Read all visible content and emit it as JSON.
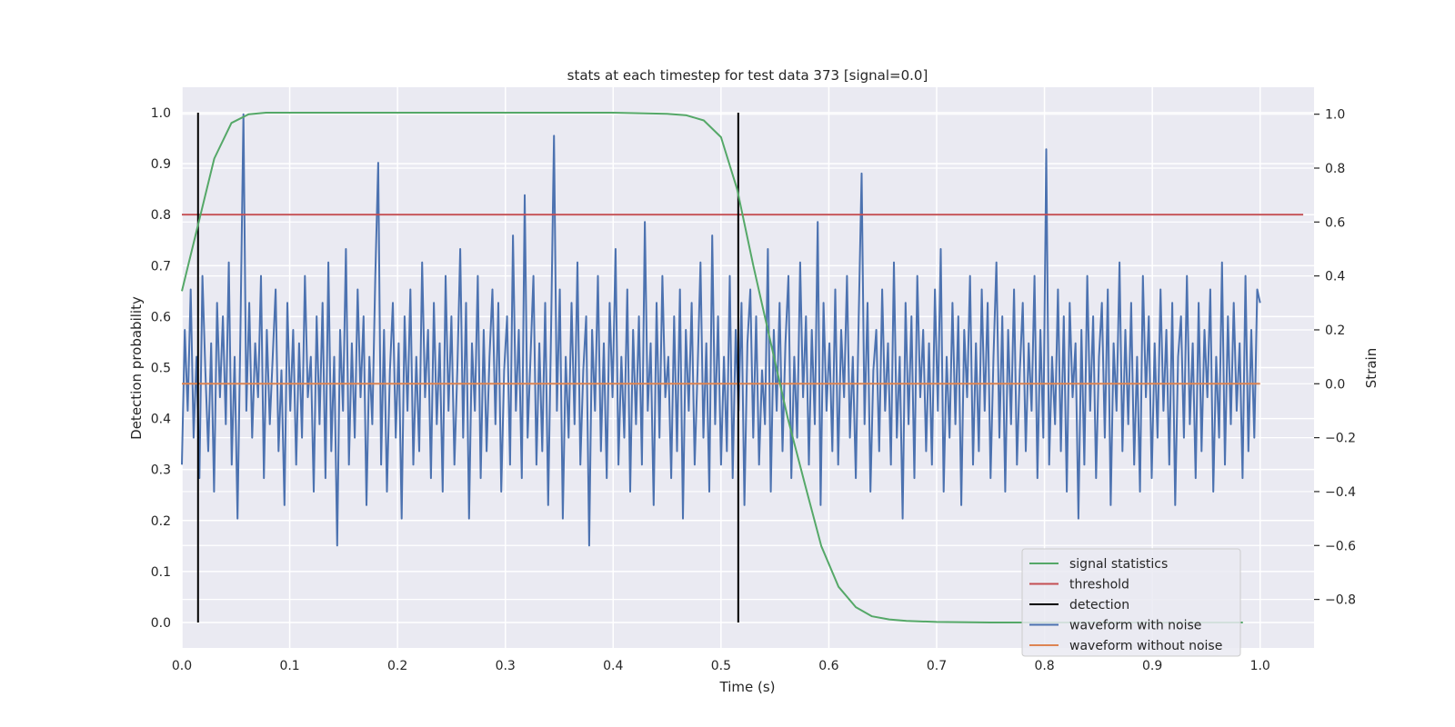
{
  "chart_data": {
    "type": "line",
    "title": "stats at each timestep for test data 373 [signal=0.0]",
    "xlabel": "Time (s)",
    "ylabel_left": "Detection probability",
    "ylabel_right": "Strain",
    "xlim": [
      0.0,
      1.05
    ],
    "ylim_left": [
      -0.05,
      1.05
    ],
    "ylim_right": [
      -0.98,
      1.1
    ],
    "x_ticks": [
      "0.0",
      "0.1",
      "0.2",
      "0.3",
      "0.4",
      "0.5",
      "0.6",
      "0.7",
      "0.8",
      "0.9",
      "1.0"
    ],
    "x_tick_values": [
      0.0,
      0.1,
      0.2,
      0.3,
      0.4,
      0.5,
      0.6,
      0.7,
      0.8,
      0.9,
      1.0
    ],
    "y_left_ticks": [
      "0.0",
      "0.1",
      "0.2",
      "0.3",
      "0.4",
      "0.5",
      "0.6",
      "0.7",
      "0.8",
      "0.9",
      "1.0"
    ],
    "y_left_tick_values": [
      0.0,
      0.1,
      0.2,
      0.3,
      0.4,
      0.5,
      0.6,
      0.7,
      0.8,
      0.9,
      1.0
    ],
    "y_right_ticks": [
      "−0.8",
      "−0.6",
      "−0.4",
      "−0.2",
      "0.0",
      "0.2",
      "0.4",
      "0.6",
      "0.8",
      "1.0"
    ],
    "y_right_tick_values": [
      -0.8,
      -0.6,
      -0.4,
      -0.2,
      0.0,
      0.2,
      0.4,
      0.6,
      0.8,
      1.0
    ],
    "grid": true,
    "legend_position": "lower-right",
    "series": [
      {
        "name": "signal statistics",
        "axis": "left",
        "color": "#55a868",
        "x": [
          0.0,
          0.015,
          0.03,
          0.046,
          0.062,
          0.078,
          0.1,
          0.2,
          0.3,
          0.4,
          0.45,
          0.468,
          0.484,
          0.5,
          0.515,
          0.53,
          0.546,
          0.562,
          0.578,
          0.593,
          0.609,
          0.625,
          0.64,
          0.656,
          0.672,
          0.7,
          0.75,
          0.8,
          0.85,
          0.9,
          0.95,
          0.984
        ],
        "y": [
          0.65,
          0.78,
          0.91,
          0.98,
          0.997,
          1.0,
          1.0,
          1.0,
          1.0,
          1.0,
          0.998,
          0.995,
          0.985,
          0.952,
          0.85,
          0.7,
          0.55,
          0.4,
          0.27,
          0.15,
          0.07,
          0.03,
          0.012,
          0.006,
          0.003,
          0.001,
          0.0,
          0.0,
          0.0,
          0.0,
          0.0,
          0.0
        ]
      },
      {
        "name": "threshold",
        "axis": "left",
        "color": "#c44e52",
        "x": [
          0.0,
          1.04
        ],
        "y": [
          0.8,
          0.8
        ]
      },
      {
        "name": "detection",
        "axis": "left",
        "color": "#000000",
        "segments": [
          {
            "x": 0.015,
            "y0": 0.0,
            "y1": 1.0
          },
          {
            "x": 0.516,
            "y0": 0.0,
            "y1": 1.0
          }
        ]
      },
      {
        "name": "waveform with noise",
        "axis": "right",
        "color": "#4c72b0",
        "x_range": [
          0.0,
          1.0
        ],
        "y": [
          -0.3,
          0.2,
          -0.1,
          0.35,
          -0.2,
          0.1,
          -0.35,
          0.4,
          0.05,
          -0.25,
          0.15,
          -0.4,
          0.3,
          -0.05,
          0.25,
          -0.15,
          0.45,
          -0.3,
          0.1,
          -0.5,
          0.2,
          1.0,
          -0.1,
          0.3,
          -0.2,
          0.15,
          -0.05,
          0.4,
          -0.35,
          0.2,
          -0.15,
          0.1,
          0.35,
          -0.25,
          0.05,
          -0.45,
          0.3,
          -0.1,
          0.2,
          -0.3,
          0.15,
          -0.2,
          0.4,
          -0.05,
          0.1,
          -0.4,
          0.25,
          -0.15,
          0.3,
          -0.35,
          0.45,
          -0.25,
          0.1,
          -0.6,
          0.2,
          -0.1,
          0.5,
          -0.3,
          0.15,
          -0.2,
          0.35,
          -0.05,
          0.25,
          -0.45,
          0.1,
          -0.15,
          0.4,
          0.82,
          -0.3,
          0.2,
          -0.4,
          0.05,
          0.3,
          -0.2,
          0.15,
          -0.5,
          0.25,
          -0.1,
          0.35,
          -0.3,
          0.1,
          -0.25,
          0.45,
          -0.05,
          0.2,
          -0.35,
          0.3,
          -0.15,
          0.15,
          -0.4,
          0.4,
          -0.1,
          0.25,
          -0.3,
          0.05,
          0.5,
          -0.2,
          0.3,
          -0.5,
          0.15,
          -0.1,
          0.4,
          -0.35,
          0.2,
          -0.25,
          0.1,
          0.35,
          -0.15,
          0.3,
          -0.4,
          0.05,
          0.25,
          -0.3,
          0.55,
          -0.1,
          0.2,
          -0.35,
          0.7,
          -0.2,
          0.1,
          0.4,
          -0.3,
          0.15,
          -0.25,
          0.3,
          -0.45,
          0.2,
          0.92,
          -0.1,
          0.35,
          -0.5,
          0.1,
          -0.2,
          0.3,
          -0.15,
          0.45,
          -0.3,
          0.05,
          0.25,
          -0.6,
          0.2,
          -0.1,
          0.4,
          -0.25,
          0.15,
          -0.35,
          0.3,
          -0.05,
          0.5,
          -0.3,
          0.1,
          -0.2,
          0.35,
          -0.4,
          0.2,
          -0.15,
          0.25,
          -0.3,
          0.6,
          -0.1,
          0.15,
          -0.45,
          0.3,
          -0.2,
          0.4,
          -0.05,
          0.1,
          -0.35,
          0.25,
          -0.25,
          0.35,
          -0.5,
          0.2,
          -0.1,
          0.3,
          -0.3,
          0.05,
          0.45,
          -0.2,
          0.15,
          -0.4,
          0.55,
          -0.15,
          0.25,
          -0.3,
          0.1,
          -0.25,
          0.4,
          -0.35,
          0.2,
          -0.1,
          0.3,
          -0.45,
          0.15,
          0.35,
          -0.2,
          0.25,
          -0.3,
          0.05,
          -0.15,
          0.5,
          -0.4,
          0.2,
          -0.1,
          0.3,
          -0.25,
          0.15,
          0.4,
          -0.35,
          0.1,
          -0.2,
          0.45,
          -0.05,
          0.25,
          -0.3,
          0.2,
          -0.15,
          0.6,
          -0.45,
          0.3,
          -0.1,
          0.15,
          -0.25,
          0.35,
          -0.3,
          0.2,
          -0.05,
          0.4,
          -0.2,
          0.1,
          -0.35,
          0.25,
          0.78,
          -0.15,
          0.3,
          -0.4,
          0.05,
          0.2,
          -0.25,
          0.35,
          -0.1,
          0.15,
          -0.3,
          0.45,
          -0.2,
          0.1,
          -0.5,
          0.3,
          -0.15,
          0.25,
          -0.35,
          0.4,
          -0.05,
          0.2,
          -0.25,
          0.15,
          -0.3,
          0.35,
          -0.1,
          0.5,
          -0.4,
          0.1,
          -0.2,
          0.3,
          -0.15,
          0.25,
          -0.45,
          0.2,
          -0.05,
          0.4,
          -0.3,
          0.15,
          -0.25,
          0.35,
          -0.1,
          0.3,
          -0.35,
          0.1,
          0.45,
          -0.2,
          0.25,
          -0.4,
          0.2,
          -0.15,
          0.35,
          -0.3,
          0.05,
          0.3,
          -0.25,
          0.15,
          -0.1,
          0.4,
          -0.35,
          0.2,
          -0.2,
          0.87,
          -0.3,
          0.1,
          -0.15,
          0.35,
          -0.25,
          0.25,
          -0.4,
          0.3,
          -0.05,
          0.15,
          -0.5,
          0.2,
          -0.3,
          0.4,
          -0.1,
          0.25,
          -0.35,
          0.1,
          0.3,
          -0.2,
          0.35,
          -0.45,
          0.15,
          -0.1,
          0.45,
          -0.25,
          0.2,
          -0.15,
          0.3,
          -0.3,
          0.1,
          -0.4,
          0.4,
          -0.05,
          0.25,
          -0.35,
          0.15,
          -0.2,
          0.35,
          -0.1,
          0.2,
          -0.3,
          0.3,
          -0.45,
          0.1,
          0.25,
          -0.2,
          0.4,
          -0.15,
          0.15,
          -0.35,
          0.3,
          -0.25,
          0.2,
          -0.05,
          0.35,
          -0.4,
          0.1,
          -0.2,
          0.45,
          -0.3,
          0.25,
          -0.15,
          0.3,
          -0.1,
          0.15,
          -0.35,
          0.4,
          -0.25,
          0.2,
          -0.2,
          0.35,
          0.3
        ]
      },
      {
        "name": "waveform without noise",
        "axis": "right",
        "color": "#dd8452",
        "x": [
          0.0,
          1.0
        ],
        "y": [
          0.0,
          0.0
        ]
      }
    ]
  }
}
